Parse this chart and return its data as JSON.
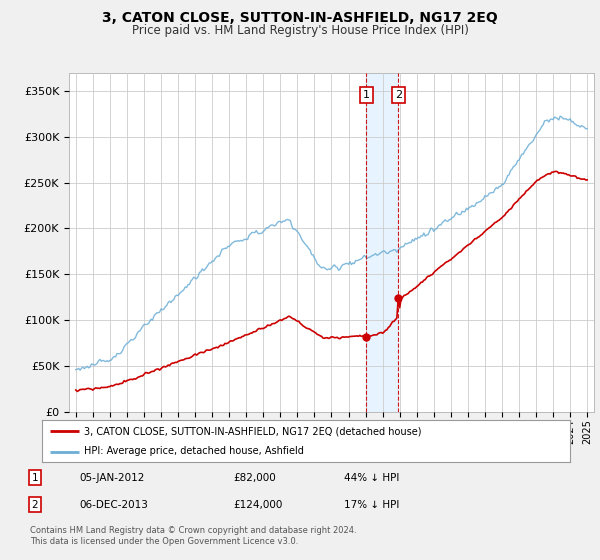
{
  "title": "3, CATON CLOSE, SUTTON-IN-ASHFIELD, NG17 2EQ",
  "subtitle": "Price paid vs. HM Land Registry's House Price Index (HPI)",
  "legend_line1": "3, CATON CLOSE, SUTTON-IN-ASHFIELD, NG17 2EQ (detached house)",
  "legend_line2": "HPI: Average price, detached house, Ashfield",
  "transaction1_date": "05-JAN-2012",
  "transaction1_price": "£82,000",
  "transaction1_hpi": "44% ↓ HPI",
  "transaction2_date": "06-DEC-2013",
  "transaction2_price": "£124,000",
  "transaction2_hpi": "17% ↓ HPI",
  "footer": "Contains HM Land Registry data © Crown copyright and database right 2024.\nThis data is licensed under the Open Government Licence v3.0.",
  "hpi_color": "#6baed6",
  "price_color": "#cc0000",
  "transaction_color": "#cc0000",
  "shade_color": "#ddeeff",
  "ylim": [
    0,
    370000
  ],
  "yticks": [
    0,
    50000,
    100000,
    150000,
    200000,
    250000,
    300000,
    350000
  ],
  "ytick_labels": [
    "£0",
    "£50K",
    "£100K",
    "£150K",
    "£200K",
    "£250K",
    "£300K",
    "£350K"
  ],
  "transaction1_year": 2012.04,
  "transaction2_year": 2013.92,
  "transaction1_value": 82000,
  "transaction2_value": 124000,
  "bg_color": "#f0f0f0",
  "plot_bg": "#ffffff",
  "grid_color": "#cccccc"
}
